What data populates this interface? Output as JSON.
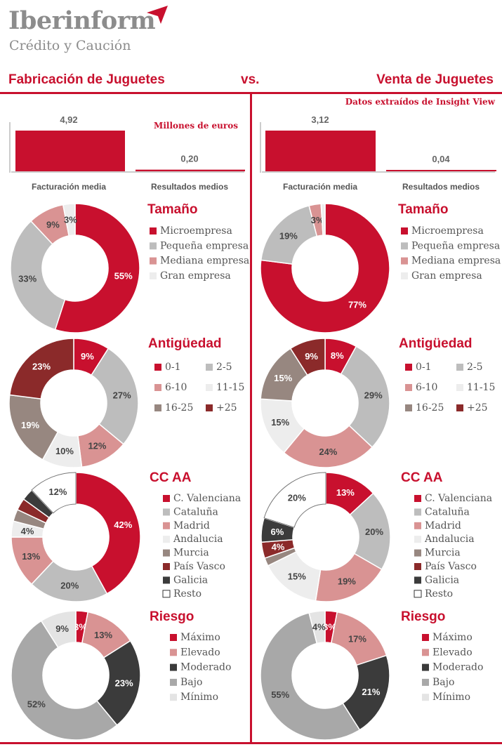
{
  "logo": {
    "name": "Iberinform",
    "subtitle": "Crédito y Caución"
  },
  "header": {
    "left_title": "Fabricación de Juguetes",
    "vs": "vs.",
    "right_title": "Venta de Juguetes",
    "source_note": "Datos extraídos de Insight View"
  },
  "colors": {
    "red": "#c8102e",
    "light_gray": "#bdbdbd",
    "pink": "#d99393",
    "very_light": "#ededed",
    "taupe": "#978780",
    "dark_red": "#8b2a2a",
    "dark": "#3b3b3b",
    "mid_gray": "#a8a8a8",
    "pale": "#e4e4e4",
    "white": "#ffffff"
  },
  "chart_data": [
    {
      "panel": "left",
      "type": "bar",
      "categories": [
        "Facturación media",
        "Resultados medios"
      ],
      "values": [
        4.92,
        0.2
      ],
      "value_labels": [
        "4,92",
        "0,20"
      ],
      "unit_label": "Millones de euros"
    },
    {
      "panel": "right",
      "type": "bar",
      "categories": [
        "Facturación media",
        "Resultados medios"
      ],
      "values": [
        3.12,
        0.04
      ],
      "value_labels": [
        "3,12",
        "0,04"
      ]
    },
    {
      "panel": "left",
      "type": "pie",
      "title": "Tamaño",
      "labels": [
        "Microempresa",
        "Pequeña empresa",
        "Mediana empresa",
        "Gran empresa"
      ],
      "values": [
        55,
        33,
        9,
        3
      ],
      "colors": [
        "red",
        "light_gray",
        "pink",
        "very_light"
      ]
    },
    {
      "panel": "right",
      "type": "pie",
      "title": "Tamaño",
      "labels": [
        "Microempresa",
        "Pequeña empresa",
        "Mediana empresa",
        "Gran empresa"
      ],
      "values": [
        77,
        19,
        3,
        1
      ],
      "colors": [
        "red",
        "light_gray",
        "pink",
        "very_light"
      ],
      "hide_labels": [
        3
      ]
    },
    {
      "panel": "left",
      "type": "pie",
      "title": "Antigüedad",
      "labels": [
        "0-1",
        "2-5",
        "6-10",
        "11-15",
        "16-25",
        "+25"
      ],
      "values": [
        9,
        27,
        12,
        10,
        19,
        23
      ],
      "colors": [
        "red",
        "light_gray",
        "pink",
        "very_light",
        "taupe",
        "dark_red"
      ]
    },
    {
      "panel": "right",
      "type": "pie",
      "title": "Antigüedad",
      "labels": [
        "0-1",
        "2-5",
        "6-10",
        "11-15",
        "16-25",
        "+25"
      ],
      "values": [
        8,
        29,
        24,
        15,
        15,
        9
      ],
      "colors": [
        "red",
        "light_gray",
        "pink",
        "very_light",
        "taupe",
        "dark_red"
      ]
    },
    {
      "panel": "left",
      "type": "pie",
      "title": "CC AA",
      "labels": [
        "C. Valenciana",
        "Cataluña",
        "Madrid",
        "Andalucia",
        "Murcia",
        "País Vasco",
        "Galicia",
        "Resto"
      ],
      "values": [
        42,
        20,
        13,
        4,
        3,
        3,
        3,
        12
      ],
      "colors": [
        "red",
        "light_gray",
        "pink",
        "very_light",
        "taupe",
        "dark_red",
        "dark",
        "white"
      ],
      "hide_labels": [
        4,
        5,
        6
      ]
    },
    {
      "panel": "right",
      "type": "pie",
      "title": "CC AA",
      "labels": [
        "C. Valenciana",
        "Cataluña",
        "Madrid",
        "Andalucia",
        "Murcia",
        "País Vasco",
        "Galicia",
        "Resto"
      ],
      "values": [
        13,
        20,
        19,
        15,
        2,
        4,
        6,
        20
      ],
      "colors": [
        "red",
        "light_gray",
        "pink",
        "very_light",
        "taupe",
        "dark_red",
        "dark",
        "white"
      ],
      "hide_labels": [
        4
      ]
    },
    {
      "panel": "left",
      "type": "pie",
      "title": "Riesgo",
      "labels": [
        "Máximo",
        "Elevado",
        "Moderado",
        "Bajo",
        "Mínimo"
      ],
      "values": [
        3,
        13,
        23,
        52,
        9
      ],
      "colors": [
        "red",
        "pink",
        "dark",
        "mid_gray",
        "pale"
      ]
    },
    {
      "panel": "right",
      "type": "pie",
      "title": "Riesgo",
      "labels": [
        "Máximo",
        "Elevado",
        "Moderado",
        "Bajo",
        "Mínimo"
      ],
      "values": [
        3,
        17,
        21,
        55,
        4
      ],
      "colors": [
        "red",
        "pink",
        "dark",
        "mid_gray",
        "pale"
      ]
    }
  ]
}
